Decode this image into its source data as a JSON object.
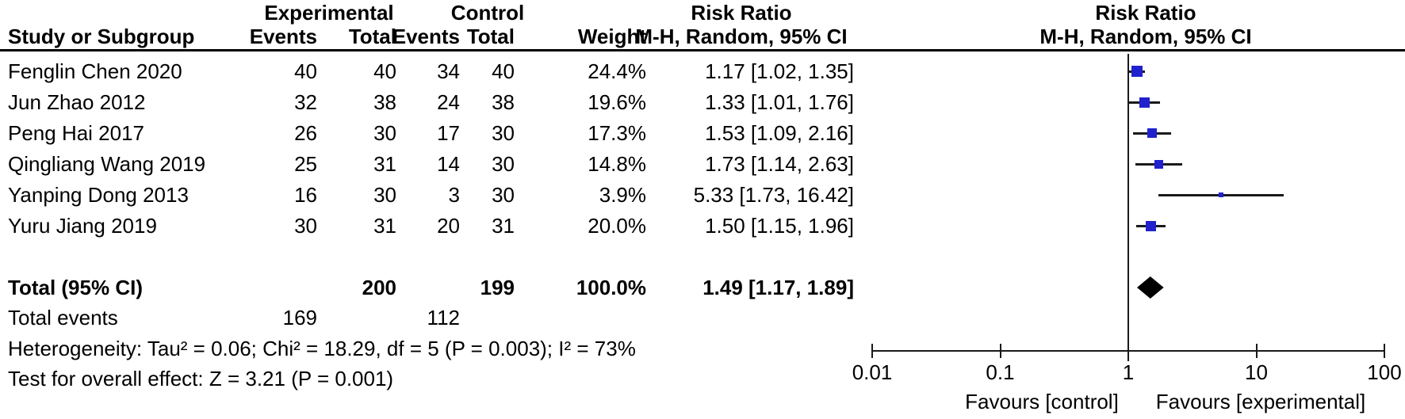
{
  "header": {
    "group_experimental": "Experimental",
    "group_control": "Control",
    "risk_ratio_text_col": "Risk Ratio",
    "risk_ratio_plot_col": "Risk Ratio",
    "study_col": "Study or Subgroup",
    "events_exp_col": "Events",
    "total_exp_col": "Total",
    "events_ctrl_col": "Events",
    "total_ctrl_col": "Total",
    "weight_col": "Weight",
    "mh_text_col": "M-H, Random, 95% CI",
    "mh_plot_col": "M-H, Random, 95% CI"
  },
  "table": {
    "rows": [
      {
        "study": "Fenglin Chen 2020",
        "events_exp": "40",
        "total_exp": "40",
        "events_ctrl": "34",
        "total_ctrl": "40",
        "weight": "24.4%",
        "ci": "1.17 [1.02, 1.35]"
      },
      {
        "study": "Jun Zhao 2012",
        "events_exp": "32",
        "total_exp": "38",
        "events_ctrl": "24",
        "total_ctrl": "38",
        "weight": "19.6%",
        "ci": "1.33 [1.01, 1.76]"
      },
      {
        "study": "Peng Hai 2017",
        "events_exp": "26",
        "total_exp": "30",
        "events_ctrl": "17",
        "total_ctrl": "30",
        "weight": "17.3%",
        "ci": "1.53 [1.09, 2.16]"
      },
      {
        "study": "Qingliang Wang 2019",
        "events_exp": "25",
        "total_exp": "31",
        "events_ctrl": "14",
        "total_ctrl": "30",
        "weight": "14.8%",
        "ci": "1.73 [1.14, 2.63]"
      },
      {
        "study": "Yanping Dong 2013",
        "events_exp": "16",
        "total_exp": "30",
        "events_ctrl": "3",
        "total_ctrl": "30",
        "weight": "3.9%",
        "ci": "5.33 [1.73, 16.42]"
      },
      {
        "study": "Yuru Jiang 2019",
        "events_exp": "30",
        "total_exp": "31",
        "events_ctrl": "20",
        "total_ctrl": "31",
        "weight": "20.0%",
        "ci": "1.50 [1.15, 1.96]"
      }
    ],
    "total_row": {
      "label": "Total (95% CI)",
      "total_exp": "200",
      "total_ctrl": "199",
      "weight": "100.0%",
      "ci": "1.49 [1.17, 1.89]"
    },
    "total_events_row": {
      "label": "Total events",
      "events_exp": "169",
      "events_ctrl": "112"
    },
    "heterogeneity": "Heterogeneity: Tau² = 0.06; Chi² = 18.29, df = 5 (P = 0.003); I² = 73%",
    "overall_effect": "Test for overall effect: Z = 3.21 (P = 0.001)"
  },
  "plot": {
    "favours_left": "Favours [control]",
    "favours_right": "Favours [experimental]",
    "marker_color": "#2121CE",
    "line_color": "#1a1a1a",
    "diamond_color": "#000000"
  },
  "chart_data": {
    "type": "forest",
    "effect_measure": "Risk Ratio",
    "model": "M-H, Random, 95% CI",
    "x_scale": "log10",
    "x_ticks": [
      0.01,
      0.1,
      1,
      10,
      100
    ],
    "xlim": [
      0.01,
      100
    ],
    "no_effect_value": 1,
    "studies": [
      {
        "name": "Fenglin Chen 2020",
        "rr": 1.17,
        "ci_low": 1.02,
        "ci_high": 1.35,
        "weight_pct": 24.4
      },
      {
        "name": "Jun Zhao 2012",
        "rr": 1.33,
        "ci_low": 1.01,
        "ci_high": 1.76,
        "weight_pct": 19.6
      },
      {
        "name": "Peng Hai 2017",
        "rr": 1.53,
        "ci_low": 1.09,
        "ci_high": 2.16,
        "weight_pct": 17.3
      },
      {
        "name": "Qingliang Wang 2019",
        "rr": 1.73,
        "ci_low": 1.14,
        "ci_high": 2.63,
        "weight_pct": 14.8
      },
      {
        "name": "Yanping Dong 2013",
        "rr": 5.33,
        "ci_low": 1.73,
        "ci_high": 16.42,
        "weight_pct": 3.9
      },
      {
        "name": "Yuru Jiang 2019",
        "rr": 1.5,
        "ci_low": 1.15,
        "ci_high": 1.96,
        "weight_pct": 20.0
      }
    ],
    "pooled": {
      "name": "Total (95% CI)",
      "rr": 1.49,
      "ci_low": 1.17,
      "ci_high": 1.89,
      "weight_pct": 100.0
    }
  }
}
